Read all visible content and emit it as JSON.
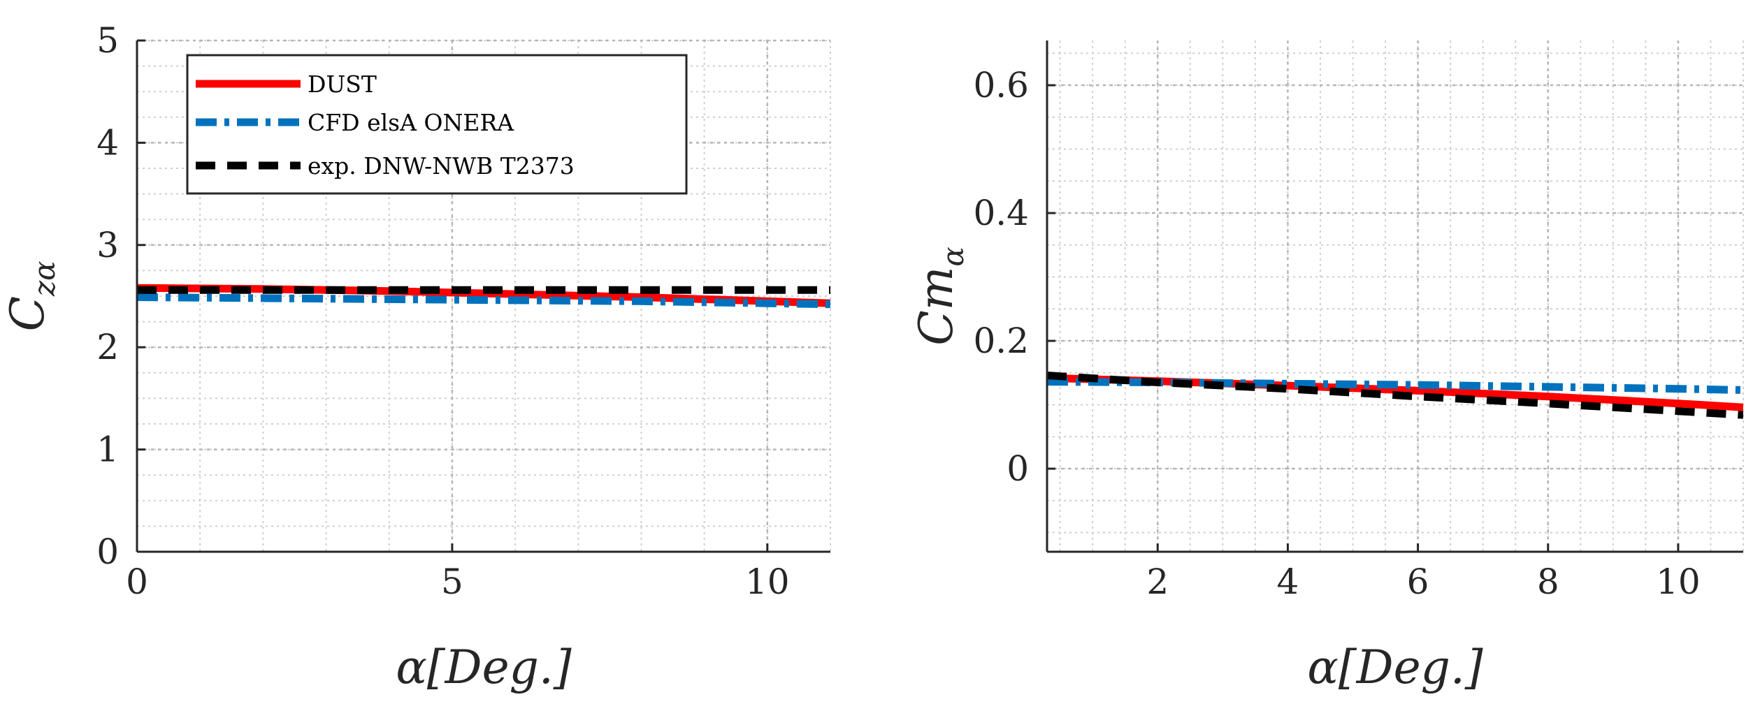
{
  "legend": [
    {
      "name": "DUST",
      "color": "#ff0000",
      "style": "solid"
    },
    {
      "name": "CFD elsA ONERA",
      "color": "#0072bd",
      "style": "dashdot"
    },
    {
      "name": "exp. DNW-NWB T2373",
      "color": "#000000",
      "style": "dashed"
    }
  ],
  "chart_data": [
    {
      "type": "line",
      "title": "",
      "xlabel": "α[Deg.]",
      "ylabel": "Cz_α",
      "ylabel_main": "C",
      "ylabel_sub": "zα",
      "xlim": [
        0,
        11
      ],
      "ylim": [
        0,
        5
      ],
      "xticks": [
        0,
        5,
        10
      ],
      "yticks": [
        0,
        1,
        2,
        3,
        4,
        5
      ],
      "xminor": 1,
      "yminor": 0.25,
      "grid": true,
      "legend_position": "top-left",
      "series": [
        {
          "name": "DUST",
          "x": [
            0,
            2,
            4,
            6,
            8,
            10,
            11
          ],
          "y": [
            2.58,
            2.57,
            2.55,
            2.52,
            2.49,
            2.45,
            2.43
          ]
        },
        {
          "name": "CFD elsA ONERA",
          "x": [
            0,
            2,
            4,
            6,
            8,
            10,
            11
          ],
          "y": [
            2.49,
            2.48,
            2.47,
            2.46,
            2.45,
            2.43,
            2.42
          ]
        },
        {
          "name": "exp. DNW-NWB T2373",
          "x": [
            0,
            2,
            4,
            6,
            8,
            10,
            11
          ],
          "y": [
            2.56,
            2.56,
            2.56,
            2.56,
            2.56,
            2.56,
            2.56
          ]
        }
      ]
    },
    {
      "type": "line",
      "title": "",
      "xlabel": "α[Deg.]",
      "ylabel": "Cm_α",
      "ylabel_main": "Cm",
      "ylabel_sub": "α",
      "xlim": [
        0.3,
        11
      ],
      "ylim": [
        -0.13,
        0.67
      ],
      "xticks": [
        2,
        4,
        6,
        8,
        10
      ],
      "yticks": [
        0,
        0.2,
        0.4,
        0.6
      ],
      "ytick_labels": [
        "0",
        "0.2",
        "0.4",
        "0.6"
      ],
      "xminor": 0.5,
      "yminor": 0.05,
      "grid": true,
      "series": [
        {
          "name": "DUST",
          "x": [
            0.3,
            2,
            4,
            6,
            8,
            10,
            11
          ],
          "y": [
            0.142,
            0.137,
            0.13,
            0.122,
            0.113,
            0.102,
            0.096
          ]
        },
        {
          "name": "CFD elsA ONERA",
          "x": [
            0.3,
            2,
            4,
            6,
            8,
            10,
            11
          ],
          "y": [
            0.136,
            0.135,
            0.133,
            0.131,
            0.128,
            0.125,
            0.123
          ]
        },
        {
          "name": "exp. DNW-NWB T2373",
          "x": [
            0.3,
            2,
            4,
            6,
            8,
            10,
            11
          ],
          "y": [
            0.146,
            0.135,
            0.125,
            0.113,
            0.102,
            0.09,
            0.084
          ]
        }
      ]
    }
  ]
}
